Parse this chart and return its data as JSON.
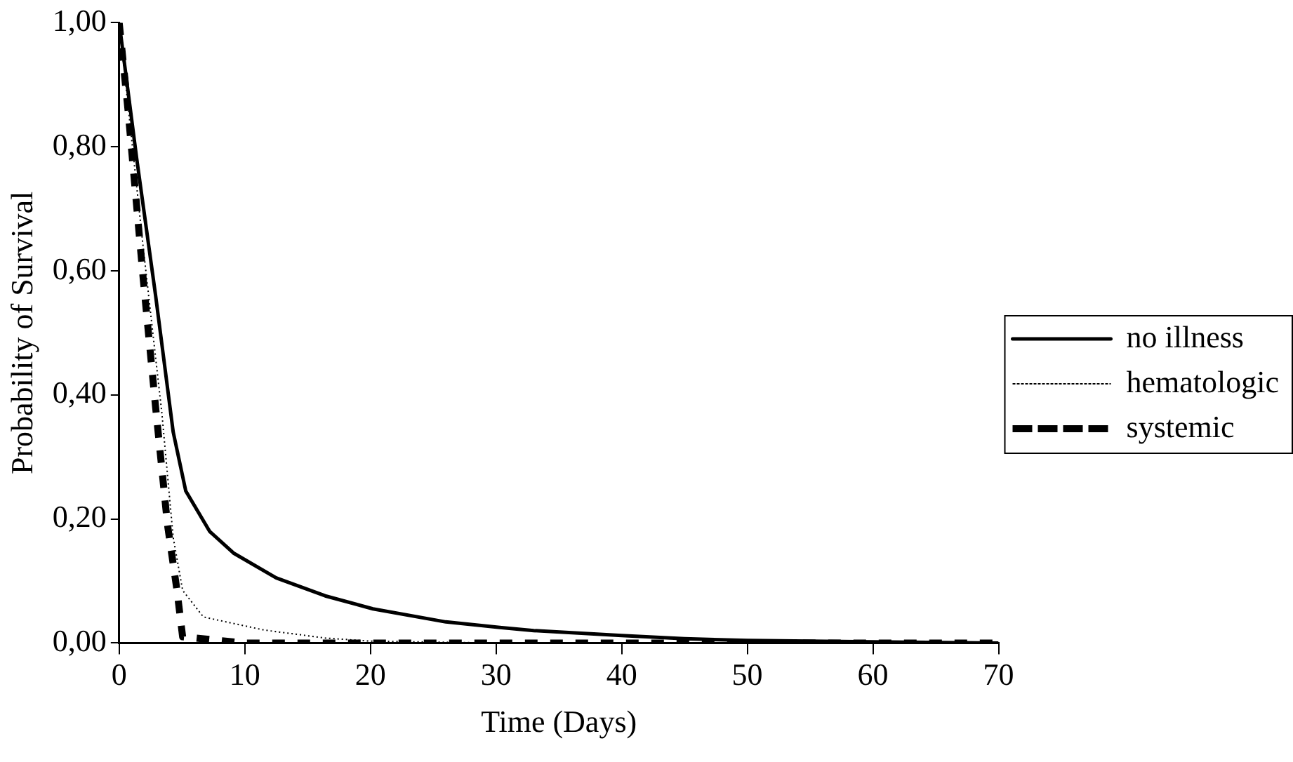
{
  "chart_data": {
    "type": "line",
    "xlabel": "Time (Days)",
    "ylabel": "Probability of Survival",
    "xlim": [
      0,
      70
    ],
    "xticks": [
      0,
      10,
      20,
      30,
      40,
      50,
      60,
      70
    ],
    "ylim": [
      0,
      1
    ],
    "yticks": [
      {
        "value": 0,
        "label": "0,00"
      },
      {
        "value": 0.2,
        "label": "0,20"
      },
      {
        "value": 0.4,
        "label": "0,40"
      },
      {
        "value": 0.6,
        "label": "0,60"
      },
      {
        "value": 0.8,
        "label": "0,80"
      },
      {
        "value": 1,
        "label": "1,00"
      }
    ],
    "grid": false,
    "legend": "right",
    "marker": "none",
    "series": [
      {
        "name": "no illness",
        "color": "#000000",
        "line_style": "solid",
        "x": [
          0,
          1.4,
          2.9,
          4.3,
          5.3,
          7.2,
          9.1,
          12.5,
          16.4,
          20.2,
          26,
          30.3,
          33,
          40,
          45,
          50,
          60,
          70
        ],
        "values": [
          1,
          0.78,
          0.56,
          0.34,
          0.245,
          0.18,
          0.145,
          0.105,
          0.076,
          0.055,
          0.034,
          0.025,
          0.02,
          0.012,
          0.007,
          0.004,
          0.002,
          0
        ]
      },
      {
        "name": "hematologic",
        "color": "#000000",
        "line_style": "dotted",
        "x": [
          0,
          1.9,
          3.4,
          4.3,
          5.05,
          6.7,
          11.5,
          16.4,
          20,
          30,
          70
        ],
        "values": [
          1,
          0.64,
          0.37,
          0.17,
          0.085,
          0.042,
          0.021,
          0.008,
          0.003,
          0,
          0
        ]
      },
      {
        "name": "systemic",
        "color": "#000000",
        "line_style": "dashed",
        "x": [
          0,
          0.7,
          1.9,
          2.9,
          3.85,
          4.6,
          5.05,
          10,
          70
        ],
        "values": [
          1,
          0.86,
          0.59,
          0.38,
          0.19,
          0.085,
          0.01,
          0,
          0
        ]
      }
    ]
  }
}
